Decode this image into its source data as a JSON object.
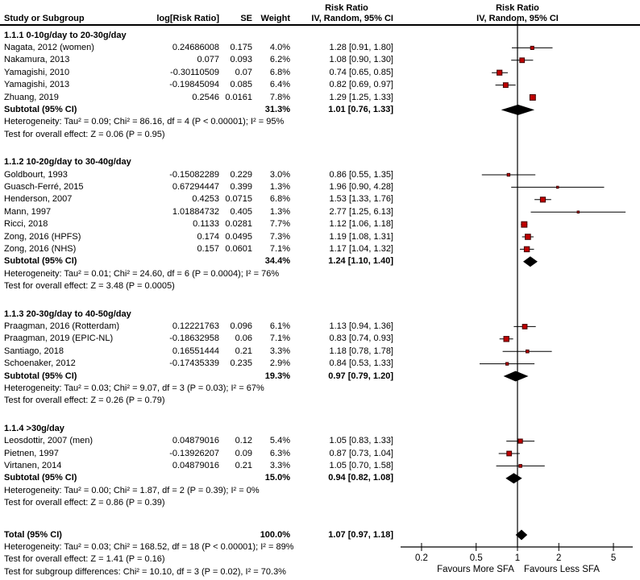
{
  "chart_data": {
    "type": "scatter",
    "subtype": "forest-plot-meta-analysis",
    "effect_label": "Risk Ratio",
    "model_label": "IV, Random, 95% CI",
    "columns": [
      "Study or Subgroup",
      "log[Risk Ratio]",
      "SE",
      "Weight",
      "IV, Random, 95% CI"
    ],
    "xscale": "log",
    "xlim": [
      0.15,
      6.8
    ],
    "ticks": [
      0.2,
      0.5,
      1,
      2,
      5
    ],
    "tick_labels": [
      "0.2",
      "0.5",
      "1",
      "2",
      "5"
    ],
    "favours_left": "Favours More SFA",
    "favours_right": "Favours Less SFA",
    "marker_color": "#bf0000",
    "marker_edge_color": "#400000",
    "line_color": "#000000",
    "diamond_color": "#000000",
    "groups": [
      {
        "label": "1.1.1 0-10g/day to 20-30g/day",
        "studies": [
          {
            "name": "Nagata, 2012 (women)",
            "log_rr": "0.24686008",
            "se": "0.175",
            "weight": "4.0%",
            "w": 4.0,
            "ci": "1.28 [0.91, 1.80]",
            "rr": 1.28,
            "lo": 0.91,
            "hi": 1.8
          },
          {
            "name": "Nakamura, 2013",
            "log_rr": "0.077",
            "se": "0.093",
            "weight": "6.2%",
            "w": 6.2,
            "ci": "1.08 [0.90, 1.30]",
            "rr": 1.08,
            "lo": 0.9,
            "hi": 1.3
          },
          {
            "name": "Yamagishi, 2010",
            "log_rr": "-0.30110509",
            "se": "0.07",
            "weight": "6.8%",
            "w": 6.8,
            "ci": "0.74 [0.65, 0.85]",
            "rr": 0.74,
            "lo": 0.65,
            "hi": 0.85
          },
          {
            "name": "Yamagishi, 2013",
            "log_rr": "-0.19845094",
            "se": "0.085",
            "weight": "6.4%",
            "w": 6.4,
            "ci": "0.82 [0.69, 0.97]",
            "rr": 0.82,
            "lo": 0.69,
            "hi": 0.97
          },
          {
            "name": "Zhuang, 2019",
            "log_rr": "0.2546",
            "se": "0.0161",
            "weight": "7.8%",
            "w": 7.8,
            "ci": "1.29 [1.25, 1.33]",
            "rr": 1.29,
            "lo": 1.25,
            "hi": 1.33
          }
        ],
        "subtotal": {
          "label": "Subtotal (95% CI)",
          "weight": "31.3%",
          "ci": "1.01 [0.76, 1.33]",
          "rr": 1.01,
          "lo": 0.76,
          "hi": 1.33
        },
        "heterogeneity": "Heterogeneity: Tau² = 0.09; Chi² = 86.16, df = 4 (P < 0.00001); I² = 95%",
        "test": "Test for overall effect: Z = 0.06 (P = 0.95)"
      },
      {
        "label": "1.1.2 10-20g/day to 30-40g/day",
        "studies": [
          {
            "name": "Goldbourt, 1993",
            "log_rr": "-0.15082289",
            "se": "0.229",
            "weight": "3.0%",
            "w": 3.0,
            "ci": "0.86 [0.55, 1.35]",
            "rr": 0.86,
            "lo": 0.55,
            "hi": 1.35
          },
          {
            "name": "Guasch-Ferré, 2015",
            "log_rr": "0.67294447",
            "se": "0.399",
            "weight": "1.3%",
            "w": 1.3,
            "ci": "1.96 [0.90, 4.28]",
            "rr": 1.96,
            "lo": 0.9,
            "hi": 4.28
          },
          {
            "name": "Henderson, 2007",
            "log_rr": "0.4253",
            "se": "0.0715",
            "weight": "6.8%",
            "w": 6.8,
            "ci": "1.53 [1.33, 1.76]",
            "rr": 1.53,
            "lo": 1.33,
            "hi": 1.76
          },
          {
            "name": "Mann, 1997",
            "log_rr": "1.01884732",
            "se": "0.405",
            "weight": "1.3%",
            "w": 1.3,
            "ci": "2.77 [1.25, 6.13]",
            "rr": 2.77,
            "lo": 1.25,
            "hi": 6.13
          },
          {
            "name": "Ricci, 2018",
            "log_rr": "0.1133",
            "se": "0.0281",
            "weight": "7.7%",
            "w": 7.7,
            "ci": "1.12 [1.06, 1.18]",
            "rr": 1.12,
            "lo": 1.06,
            "hi": 1.18
          },
          {
            "name": "Zong, 2016 (HPFS)",
            "log_rr": "0.174",
            "se": "0.0495",
            "weight": "7.3%",
            "w": 7.3,
            "ci": "1.19 [1.08, 1.31]",
            "rr": 1.19,
            "lo": 1.08,
            "hi": 1.31
          },
          {
            "name": "Zong, 2016 (NHS)",
            "log_rr": "0.157",
            "se": "0.0601",
            "weight": "7.1%",
            "w": 7.1,
            "ci": "1.17 [1.04, 1.32]",
            "rr": 1.17,
            "lo": 1.04,
            "hi": 1.32
          }
        ],
        "subtotal": {
          "label": "Subtotal (95% CI)",
          "weight": "34.4%",
          "ci": "1.24 [1.10, 1.40]",
          "rr": 1.24,
          "lo": 1.1,
          "hi": 1.4
        },
        "heterogeneity": "Heterogeneity: Tau² = 0.01; Chi² = 24.60, df = 6 (P = 0.0004); I² = 76%",
        "test": "Test for overall effect: Z = 3.48 (P = 0.0005)"
      },
      {
        "label": "1.1.3 20-30g/day to 40-50g/day",
        "studies": [
          {
            "name": "Praagman, 2016 (Rotterdam)",
            "log_rr": "0.12221763",
            "se": "0.096",
            "weight": "6.1%",
            "w": 6.1,
            "ci": "1.13 [0.94, 1.36]",
            "rr": 1.13,
            "lo": 0.94,
            "hi": 1.36
          },
          {
            "name": "Praagman, 2019 (EPIC-NL)",
            "log_rr": "-0.18632958",
            "se": "0.06",
            "weight": "7.1%",
            "w": 7.1,
            "ci": "0.83 [0.74, 0.93]",
            "rr": 0.83,
            "lo": 0.74,
            "hi": 0.93
          },
          {
            "name": "Santiago, 2018",
            "log_rr": "0.16551444",
            "se": "0.21",
            "weight": "3.3%",
            "w": 3.3,
            "ci": "1.18 [0.78, 1.78]",
            "rr": 1.18,
            "lo": 0.78,
            "hi": 1.78
          },
          {
            "name": "Schoenaker, 2012",
            "log_rr": "-0.17435339",
            "se": "0.235",
            "weight": "2.9%",
            "w": 2.9,
            "ci": "0.84 [0.53, 1.33]",
            "rr": 0.84,
            "lo": 0.53,
            "hi": 1.33
          }
        ],
        "subtotal": {
          "label": "Subtotal (95% CI)",
          "weight": "19.3%",
          "ci": "0.97 [0.79, 1.20]",
          "rr": 0.97,
          "lo": 0.79,
          "hi": 1.2
        },
        "heterogeneity": "Heterogeneity: Tau² = 0.03; Chi² = 9.07, df = 3 (P = 0.03); I² = 67%",
        "test": "Test for overall effect: Z = 0.26 (P = 0.79)"
      },
      {
        "label": "1.1.4 >30g/day",
        "studies": [
          {
            "name": "Leosdottir, 2007 (men)",
            "log_rr": "0.04879016",
            "se": "0.12",
            "weight": "5.4%",
            "w": 5.4,
            "ci": "1.05 [0.83, 1.33]",
            "rr": 1.05,
            "lo": 0.83,
            "hi": 1.33
          },
          {
            "name": "Pietnen, 1997",
            "log_rr": "-0.13926207",
            "se": "0.09",
            "weight": "6.3%",
            "w": 6.3,
            "ci": "0.87 [0.73, 1.04]",
            "rr": 0.87,
            "lo": 0.73,
            "hi": 1.04
          },
          {
            "name": "Virtanen, 2014",
            "log_rr": "0.04879016",
            "se": "0.21",
            "weight": "3.3%",
            "w": 3.3,
            "ci": "1.05 [0.70, 1.58]",
            "rr": 1.05,
            "lo": 0.7,
            "hi": 1.58
          }
        ],
        "subtotal": {
          "label": "Subtotal (95% CI)",
          "weight": "15.0%",
          "ci": "0.94 [0.82, 1.08]",
          "rr": 0.94,
          "lo": 0.82,
          "hi": 1.08
        },
        "heterogeneity": "Heterogeneity: Tau² = 0.00; Chi² = 1.87, df = 2 (P = 0.39); I² = 0%",
        "test": "Test for overall effect: Z = 0.86 (P = 0.39)"
      }
    ],
    "total": {
      "label": "Total (95% CI)",
      "weight": "100.0%",
      "ci": "1.07 [0.97, 1.18]",
      "rr": 1.07,
      "lo": 0.97,
      "hi": 1.18,
      "heterogeneity": "Heterogeneity: Tau² = 0.03; Chi² = 168.52, df = 18 (P < 0.00001); I² = 89%",
      "test": "Test for overall effect: Z = 1.41 (P = 0.16)",
      "subgroup_test": "Test for subgroup differences: Chi² = 10.10, df = 3 (P = 0.02), I² = 70.3%"
    }
  }
}
